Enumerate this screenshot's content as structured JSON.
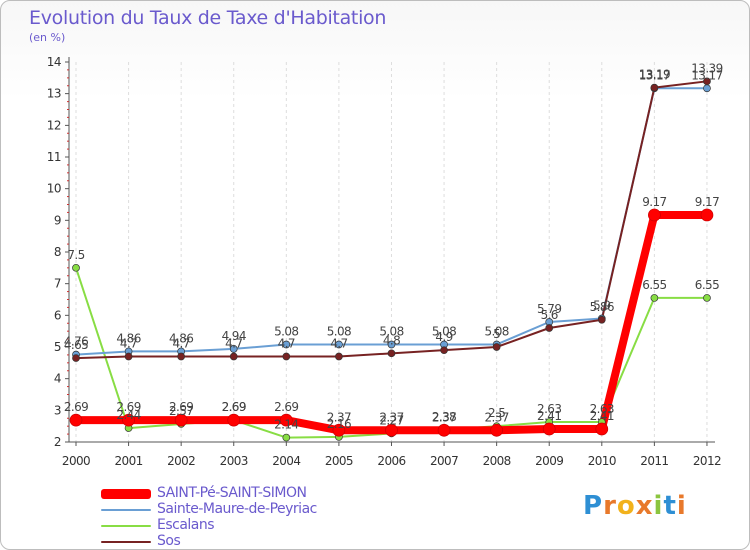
{
  "chart_data": {
    "type": "line",
    "title": "Evolution du Taux de Taxe d'Habitation",
    "unit_label": "(en %)",
    "categories": [
      "2000",
      "2001",
      "2002",
      "2003",
      "2004",
      "2005",
      "2006",
      "2007",
      "2008",
      "2009",
      "2010",
      "2011",
      "2012"
    ],
    "ylim": [
      2,
      14
    ],
    "yticks": [
      "2",
      "3",
      "4",
      "5",
      "6",
      "7",
      "8",
      "9",
      "10",
      "11",
      "12",
      "13",
      "14"
    ],
    "grid": "vertical dashed",
    "legend_position": "bottom-left",
    "series": [
      {
        "name": "SAINT-Pé-SAINT-SIMON",
        "color": "#ff0000",
        "values": [
          2.69,
          2.69,
          2.69,
          2.69,
          2.69,
          2.37,
          2.37,
          2.37,
          2.37,
          2.41,
          2.41,
          9.17,
          9.17
        ],
        "labels": [
          "2.69",
          "2.69",
          "2.69",
          "2.69",
          "2.69",
          "2.37",
          "2.37",
          "2.37",
          "2.37",
          "2.41",
          "2.41",
          "9.17",
          "9.17"
        ]
      },
      {
        "name": "Sainte-Maure-de-Peyriac",
        "color": "#6a9fd4",
        "values": [
          4.76,
          4.86,
          4.86,
          4.94,
          5.08,
          5.08,
          5.08,
          5.08,
          5.08,
          5.79,
          5.9,
          13.17,
          13.17
        ],
        "labels": [
          "4.76",
          "4.86",
          "4.86",
          "4.94",
          "5.08",
          "5.08",
          "5.08",
          "5.08",
          "5.08",
          "5.79",
          "5.9",
          "13.17",
          "13.17"
        ]
      },
      {
        "name": "Escalans",
        "color": "#88dd44",
        "values": [
          7.5,
          2.44,
          2.57,
          2.69,
          2.14,
          2.16,
          2.27,
          2.38,
          2.5,
          2.63,
          2.63,
          6.55,
          6.55
        ],
        "labels": [
          "7.5",
          "2.44",
          "2.57",
          "2.69",
          "2.14",
          "2.16",
          "2.27",
          "2.38",
          "2.5",
          "2.63",
          "2.63",
          "6.55",
          "6.55"
        ]
      },
      {
        "name": "Sos",
        "color": "#772222",
        "values": [
          4.65,
          4.7,
          4.7,
          4.7,
          4.7,
          4.7,
          4.8,
          4.9,
          5.0,
          5.6,
          5.86,
          13.19,
          13.39
        ],
        "labels": [
          "4.65",
          "4.7",
          "4.7",
          "4.7",
          "4.7",
          "4.7",
          "4.8",
          "4.9",
          "5",
          "5.6",
          "5.86",
          "13.19",
          "13.39"
        ]
      }
    ]
  },
  "logo": {
    "text": "Proxiti",
    "colors": [
      "#2e8fd4",
      "#e8792b",
      "#f2b21c",
      "#e8792b",
      "#8bc53f",
      "#2e8fd4",
      "#e8792b"
    ]
  }
}
